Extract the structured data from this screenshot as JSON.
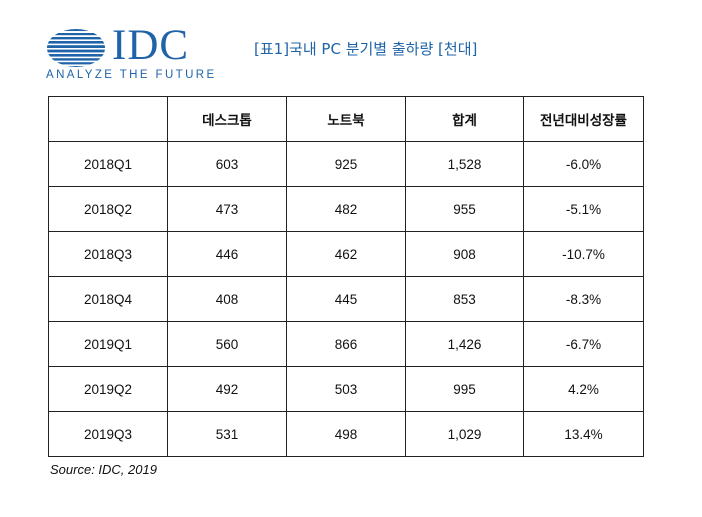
{
  "logo": {
    "wordmark": "IDC",
    "tagline": "ANALYZE THE FUTURE",
    "color": "#1f63a8"
  },
  "title": "[표1]국내 PC 분기별 출하량 [천대]",
  "table": {
    "headers": [
      "",
      "데스크톱",
      "노트북",
      "합계",
      "전년대비성장률"
    ],
    "rows": [
      [
        "2018Q1",
        "603",
        "925",
        "1,528",
        "-6.0%"
      ],
      [
        "2018Q2",
        "473",
        "482",
        "955",
        "-5.1%"
      ],
      [
        "2018Q3",
        "446",
        "462",
        "908",
        "-10.7%"
      ],
      [
        "2018Q4",
        "408",
        "445",
        "853",
        "-8.3%"
      ],
      [
        "2019Q1",
        "560",
        "866",
        "1,426",
        "-6.7%"
      ],
      [
        "2019Q2",
        "492",
        "503",
        "995",
        "4.2%"
      ],
      [
        "2019Q3",
        "531",
        "498",
        "1,029",
        "13.4%"
      ]
    ]
  },
  "source": "Source: IDC, 2019"
}
